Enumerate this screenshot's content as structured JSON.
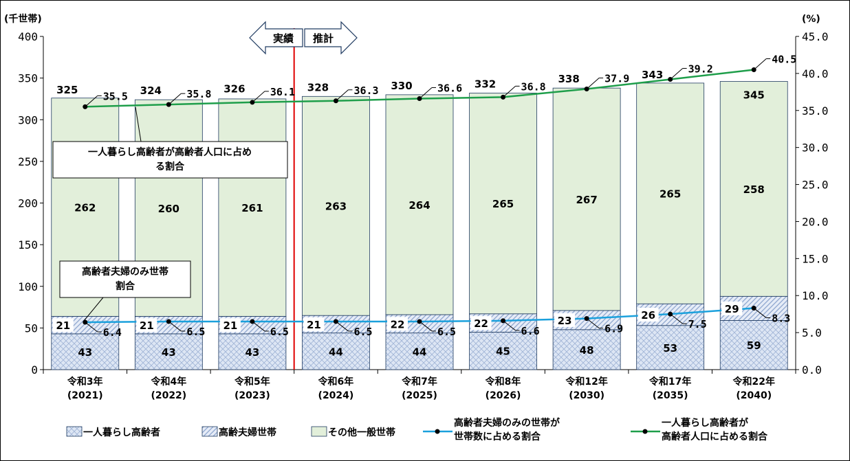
{
  "chart_data": {
    "type": "bar",
    "stacked": true,
    "categories": [
      {
        "line1": "令和3年",
        "line2": "(2021)"
      },
      {
        "line1": "令和4年",
        "line2": "(2022)"
      },
      {
        "line1": "令和5年",
        "line2": "(2023)"
      },
      {
        "line1": "令和6年",
        "line2": "(2024)"
      },
      {
        "line1": "令和7年",
        "line2": "(2025)"
      },
      {
        "line1": "令和8年",
        "line2": "(2026)"
      },
      {
        "line1": "令和12年",
        "line2": "(2030)"
      },
      {
        "line1": "令和17年",
        "line2": "(2035)"
      },
      {
        "line1": "令和22年",
        "line2": "(2040)"
      }
    ],
    "series": [
      {
        "name": "一人暮らし高齢者",
        "values": [
          43,
          43,
          43,
          44,
          44,
          45,
          48,
          53,
          59
        ],
        "axis": "left",
        "kind": "bar",
        "color": "#dde6f4",
        "pattern": "crosshatch"
      },
      {
        "name": "高齢夫婦世帯",
        "values": [
          21,
          21,
          21,
          21,
          22,
          22,
          23,
          26,
          29
        ],
        "axis": "left",
        "kind": "bar",
        "color": "#dde6f4",
        "pattern": "diagonal"
      },
      {
        "name": "その他一般世帯",
        "values": [
          262,
          260,
          261,
          263,
          264,
          265,
          267,
          265,
          258
        ],
        "axis": "left",
        "kind": "bar",
        "color": "#e2efda"
      },
      {
        "name": "高齢者夫婦のみの世帯が世帯数に占める割合",
        "values": [
          "6.4",
          "6.5",
          "6.5",
          "6.5",
          "6.5",
          "6.6",
          "6.9",
          "7.5",
          "8.3"
        ],
        "axis": "right",
        "kind": "line",
        "color": "#1aa0dc"
      },
      {
        "name": "一人暮らし高齢者が高齢者人口に占める割合",
        "values": [
          "35.5",
          "35.8",
          "36.1",
          "36.3",
          "36.6",
          "36.8",
          "37.9",
          "39.2",
          "40.5"
        ],
        "axis": "right",
        "kind": "line",
        "color": "#1e9e4a"
      }
    ],
    "totals": [
      325,
      324,
      326,
      328,
      330,
      332,
      338,
      343,
      345
    ],
    "left_axis": {
      "unit": "(千世帯)",
      "min": 0,
      "max": 400,
      "ticks": [
        "0",
        "50",
        "100",
        "150",
        "200",
        "250",
        "300",
        "350",
        "400"
      ]
    },
    "right_axis": {
      "unit": "(%)",
      "min": 0,
      "max": 45,
      "ticks": [
        "0.0",
        "5.0",
        "10.0",
        "15.0",
        "20.0",
        "25.0",
        "30.0",
        "35.0",
        "40.0",
        "45.0"
      ]
    },
    "divider": {
      "after_index": 2,
      "left_label": "実績",
      "right_label": "推計",
      "color": "#e00000"
    },
    "callouts": {
      "top_line": [
        "一人暮らし高齢者が高齢者人口に占め",
        "る割合"
      ],
      "bottom_line": [
        "高齢者夫婦のみ世帯",
        "割合"
      ]
    },
    "legend": {
      "position": "bottom",
      "items": [
        {
          "label": "一人暮らし高齢者"
        },
        {
          "label": "高齢夫婦世帯"
        },
        {
          "label": "その他一般世帯"
        },
        {
          "line1": "高齢者夫婦のみの世帯が",
          "line2": "世帯数に占める割合"
        },
        {
          "line1": "一人暮らし高齢者が",
          "line2": "高齢者人口に占める割合"
        }
      ]
    },
    "grid": false
  }
}
